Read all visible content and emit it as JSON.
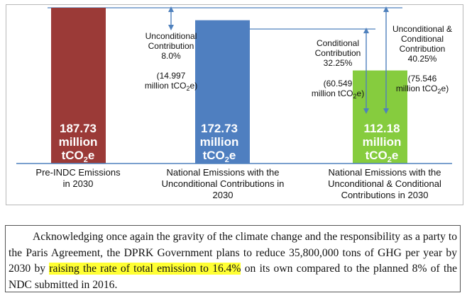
{
  "colors": {
    "pre_indc": "#9b3a37",
    "unconditional": "#4f7fc0",
    "conditional": "#86cc3e",
    "axis_line": "#4f81bd",
    "arrow": "#4f81bd",
    "highlight": "#ffff33"
  },
  "chart_data": {
    "type": "bar",
    "unit": "million tCO2e",
    "categories": [
      {
        "line1": "Pre-INDC Emissions",
        "line2": "in 2030",
        "line3": ""
      },
      {
        "line1": "National Emissions with the",
        "line2": "Unconditional Contributions in",
        "line3": "2030"
      },
      {
        "line1": "National Emissions with the",
        "line2": "Unconditional & Conditional",
        "line3": "Contributions  in 2030"
      }
    ],
    "values": [
      187.73,
      172.73,
      112.18
    ],
    "value_labels": [
      {
        "num": "187.73",
        "word": "million",
        "unit": "tCO",
        "sub": "2",
        "tail": "e"
      },
      {
        "num": "172.73",
        "word": "million",
        "unit": "tCO",
        "sub": "2",
        "tail": "e"
      },
      {
        "num": "112.18",
        "word": "million",
        "unit": "tCO",
        "sub": "2",
        "tail": "e"
      }
    ],
    "reductions": [
      {
        "label": "Unconditional",
        "label2": "Contribution",
        "pct": "8.0%",
        "amount": "(14.997",
        "amount_unit": "million tCO",
        "sub": "2",
        "tail": "e)",
        "value": 14.997
      },
      {
        "label": "Conditional",
        "label2": "Contribution",
        "pct": "32.25%",
        "amount": "(60.549",
        "amount_unit": "million tCO",
        "sub": "2",
        "tail": "e)",
        "value": 60.549
      },
      {
        "label": "Unconditional &",
        "label2": "Conditional",
        "label3": "Contribution",
        "pct": "40.25%",
        "amount": "(75.546",
        "amount_unit": "million tCO",
        "sub": "2",
        "tail": "e)",
        "value": 75.546
      }
    ],
    "ylim": [
      0,
      187.73
    ],
    "title": "",
    "xlabel": "",
    "ylabel": ""
  },
  "text": {
    "before": "Acknowledging once again the gravity of the climate change and the responsibility as a party to the Paris Agreement, the DPRK Government plans to reduce 35,800,000 tons of GHG per year by 2030 by ",
    "highlight": "raising the rate of total emission to 16.4%",
    "after": " on its own compared to the planned 8% of the NDC submitted in 2016."
  }
}
